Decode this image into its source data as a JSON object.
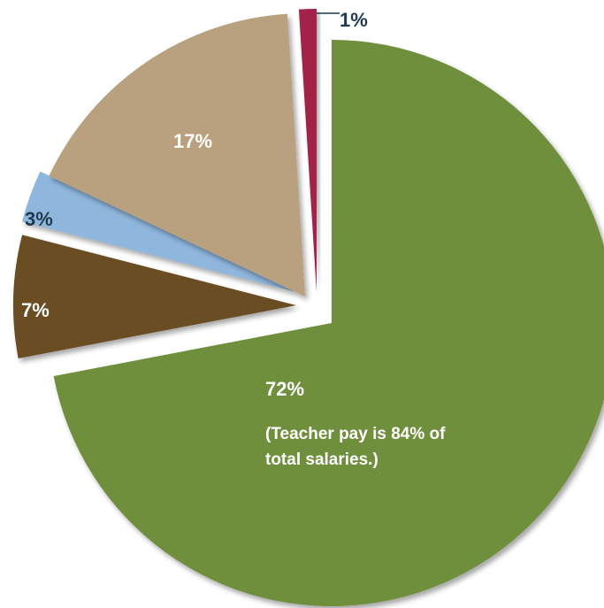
{
  "chart_data": {
    "type": "pie",
    "exploded": true,
    "slices": [
      {
        "label": "72%",
        "value": 72,
        "color": "#6f8f3d",
        "label_color": "#ffffff",
        "note_lines": [
          "(Teacher pay is 84% of",
          "total salaries.)"
        ]
      },
      {
        "label": "7%",
        "value": 7,
        "color": "#6b4e24",
        "label_color": "#ffffff"
      },
      {
        "label": "3%",
        "value": 3,
        "color": "#8fb6dd",
        "label_color": "#1f3a4d"
      },
      {
        "label": "17%",
        "value": 17,
        "color": "#b9a17f",
        "label_color": "#ffffff"
      },
      {
        "label": "1%",
        "value": 1,
        "color": "#a3204a",
        "label_color": "#1f3a4d"
      }
    ]
  }
}
